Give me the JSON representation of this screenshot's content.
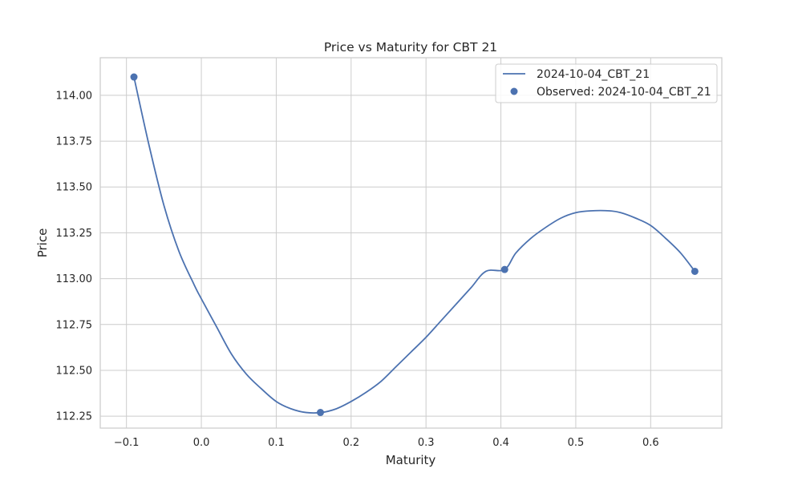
{
  "chart_data": {
    "type": "line",
    "title": "Price vs Maturity for CBT 21",
    "xlabel": "Maturity",
    "ylabel": "Price",
    "xlim": [
      -0.135,
      0.695
    ],
    "ylim": [
      112.185,
      114.205
    ],
    "xticks": [
      -0.1,
      0.0,
      0.1,
      0.2,
      0.3,
      0.4,
      0.5,
      0.6
    ],
    "xtick_labels": [
      "−0.1",
      "0.0",
      "0.1",
      "0.2",
      "0.3",
      "0.4",
      "0.5",
      "0.6"
    ],
    "yticks": [
      112.25,
      112.5,
      112.75,
      113.0,
      113.25,
      113.5,
      113.75,
      114.0
    ],
    "ytick_labels": [
      "112.25",
      "112.50",
      "112.75",
      "113.00",
      "113.25",
      "113.50",
      "113.75",
      "114.00"
    ],
    "grid": true,
    "legend_position": "top-right",
    "line_color": "#4c72b0",
    "series": [
      {
        "name": "2024-10-04_CBT_21",
        "kind": "line",
        "x": [
          -0.09,
          -0.07,
          -0.05,
          -0.03,
          -0.01,
          0.0,
          0.02,
          0.04,
          0.06,
          0.08,
          0.1,
          0.12,
          0.14,
          0.16,
          0.18,
          0.2,
          0.22,
          0.24,
          0.26,
          0.28,
          0.3,
          0.32,
          0.34,
          0.36,
          0.38,
          0.405,
          0.42,
          0.44,
          0.46,
          0.48,
          0.5,
          0.52,
          0.545,
          0.56,
          0.58,
          0.6,
          0.62,
          0.64,
          0.659
        ],
        "y": [
          114.1,
          113.73,
          113.4,
          113.15,
          112.97,
          112.89,
          112.74,
          112.59,
          112.48,
          112.4,
          112.33,
          112.29,
          112.27,
          112.27,
          112.29,
          112.33,
          112.38,
          112.44,
          112.52,
          112.6,
          112.68,
          112.77,
          112.86,
          112.95,
          113.04,
          113.05,
          113.14,
          113.22,
          113.28,
          113.33,
          113.36,
          113.37,
          113.37,
          113.36,
          113.33,
          113.29,
          113.22,
          113.14,
          113.04
        ]
      },
      {
        "name": "Observed: 2024-10-04_CBT_21",
        "kind": "scatter",
        "x": [
          -0.09,
          0.159,
          0.405,
          0.659
        ],
        "y": [
          114.1,
          112.27,
          113.05,
          113.04
        ]
      }
    ]
  }
}
